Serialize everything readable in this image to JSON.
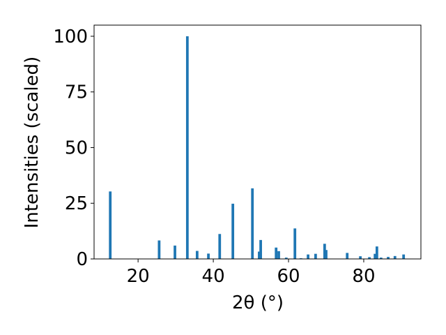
{
  "chart_data": {
    "type": "bar",
    "xlabel": "2θ (°)",
    "ylabel": "Intensities (scaled)",
    "x": [
      12.6,
      25.6,
      29.8,
      33.1,
      35.7,
      38.7,
      41.7,
      45.2,
      50.4,
      52.2,
      52.6,
      56.7,
      57.4,
      59.4,
      61.7,
      63.3,
      65.2,
      67.2,
      69.6,
      70.0,
      75.6,
      79.1,
      81.5,
      83.0,
      83.5,
      84.6,
      86.5,
      88.3,
      90.6
    ],
    "values": [
      30.3,
      8.3,
      6,
      100,
      3.6,
      2.4,
      11.2,
      24.8,
      31.7,
      3.3,
      8.5,
      5.1,
      3.5,
      0.6,
      13.7,
      0.3,
      2,
      2.3,
      6.8,
      4,
      2.7,
      1.2,
      0.8,
      2.3,
      5.6,
      0.6,
      0.9,
      1.3,
      2
    ],
    "color": "#1f77b4",
    "xlim": [
      8.3,
      95.2
    ],
    "ylim": [
      0,
      105
    ],
    "xticks": [
      20,
      40,
      60,
      80
    ],
    "yticks": [
      0,
      25,
      50,
      75,
      100
    ]
  }
}
